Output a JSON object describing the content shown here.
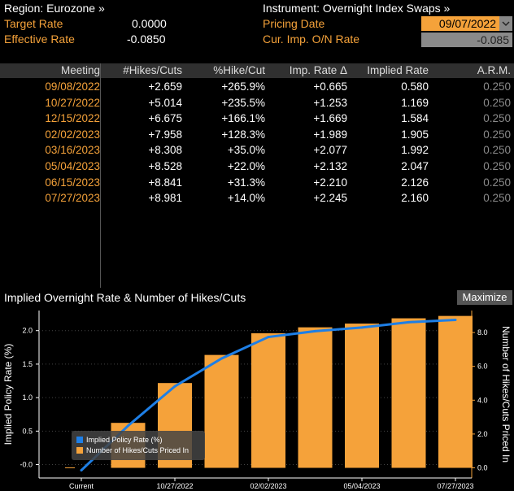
{
  "header": {
    "region_label": "Region: Eurozone »",
    "instrument_label": "Instrument: Overnight Index Swaps »",
    "target_rate_label": "Target Rate",
    "target_rate_value": "0.0000",
    "effective_rate_label": "Effective Rate",
    "effective_rate_value": "-0.0850",
    "pricing_date_label": "Pricing Date",
    "pricing_date_value": "09/07/2022",
    "cur_imp_label": "Cur. Imp. O/N Rate",
    "cur_imp_value": "-0.085"
  },
  "table": {
    "columns": [
      "Meeting",
      "#Hikes/Cuts",
      "%Hike/Cut",
      "Imp. Rate Δ",
      "Implied Rate",
      "A.R.M."
    ],
    "rows": [
      [
        "09/08/2022",
        "+2.659",
        "+265.9%",
        "+0.665",
        "0.580",
        "0.250"
      ],
      [
        "10/27/2022",
        "+5.014",
        "+235.5%",
        "+1.253",
        "1.169",
        "0.250"
      ],
      [
        "12/15/2022",
        "+6.675",
        "+166.1%",
        "+1.669",
        "1.584",
        "0.250"
      ],
      [
        "02/02/2023",
        "+7.958",
        "+128.3%",
        "+1.989",
        "1.905",
        "0.250"
      ],
      [
        "03/16/2023",
        "+8.308",
        "+35.0%",
        "+2.077",
        "1.992",
        "0.250"
      ],
      [
        "05/04/2023",
        "+8.528",
        "+22.0%",
        "+2.132",
        "2.047",
        "0.250"
      ],
      [
        "06/15/2023",
        "+8.841",
        "+31.3%",
        "+2.210",
        "2.126",
        "0.250"
      ],
      [
        "07/27/2023",
        "+8.981",
        "+14.0%",
        "+2.245",
        "2.160",
        "0.250"
      ]
    ]
  },
  "chart": {
    "title": "Implied Overnight Rate & Number of Hikes/Cuts",
    "maximize_label": "Maximize"
  },
  "chart_data": {
    "type": "bar",
    "categories": [
      "Current",
      "09/08/2022",
      "10/27/2022",
      "12/15/2022",
      "02/02/2023",
      "03/16/2023",
      "05/04/2023",
      "06/15/2023",
      "07/27/2023"
    ],
    "x_tick_labels": [
      "Current",
      "10/27/2022",
      "02/02/2023",
      "05/04/2023",
      "07/27/2023"
    ],
    "series": [
      {
        "name": "Implied Policy Rate (%)",
        "type": "line",
        "axis": "left",
        "color": "#1e7fe6",
        "values": [
          -0.085,
          0.58,
          1.169,
          1.584,
          1.905,
          1.992,
          2.047,
          2.126,
          2.16
        ]
      },
      {
        "name": "Number of Hikes/Cuts Priced In",
        "type": "bar",
        "axis": "right",
        "color": "#f5a23a",
        "values": [
          0,
          2.659,
          5.014,
          6.675,
          7.958,
          8.308,
          8.528,
          8.841,
          8.981
        ]
      }
    ],
    "ylabel": "Implied Policy Rate (%)",
    "y2label": "Number of Hikes/Cuts Priced In",
    "ylim": [
      -0.2,
      2.3
    ],
    "y2lim": [
      -0.6,
      9.3
    ],
    "yticks": [
      "-0.0",
      "0.5",
      "1.0",
      "1.5",
      "2.0"
    ],
    "y2ticks": [
      "0.0",
      "2.0",
      "4.0",
      "6.0",
      "8.0"
    ],
    "legend_position": "bottom-left"
  }
}
